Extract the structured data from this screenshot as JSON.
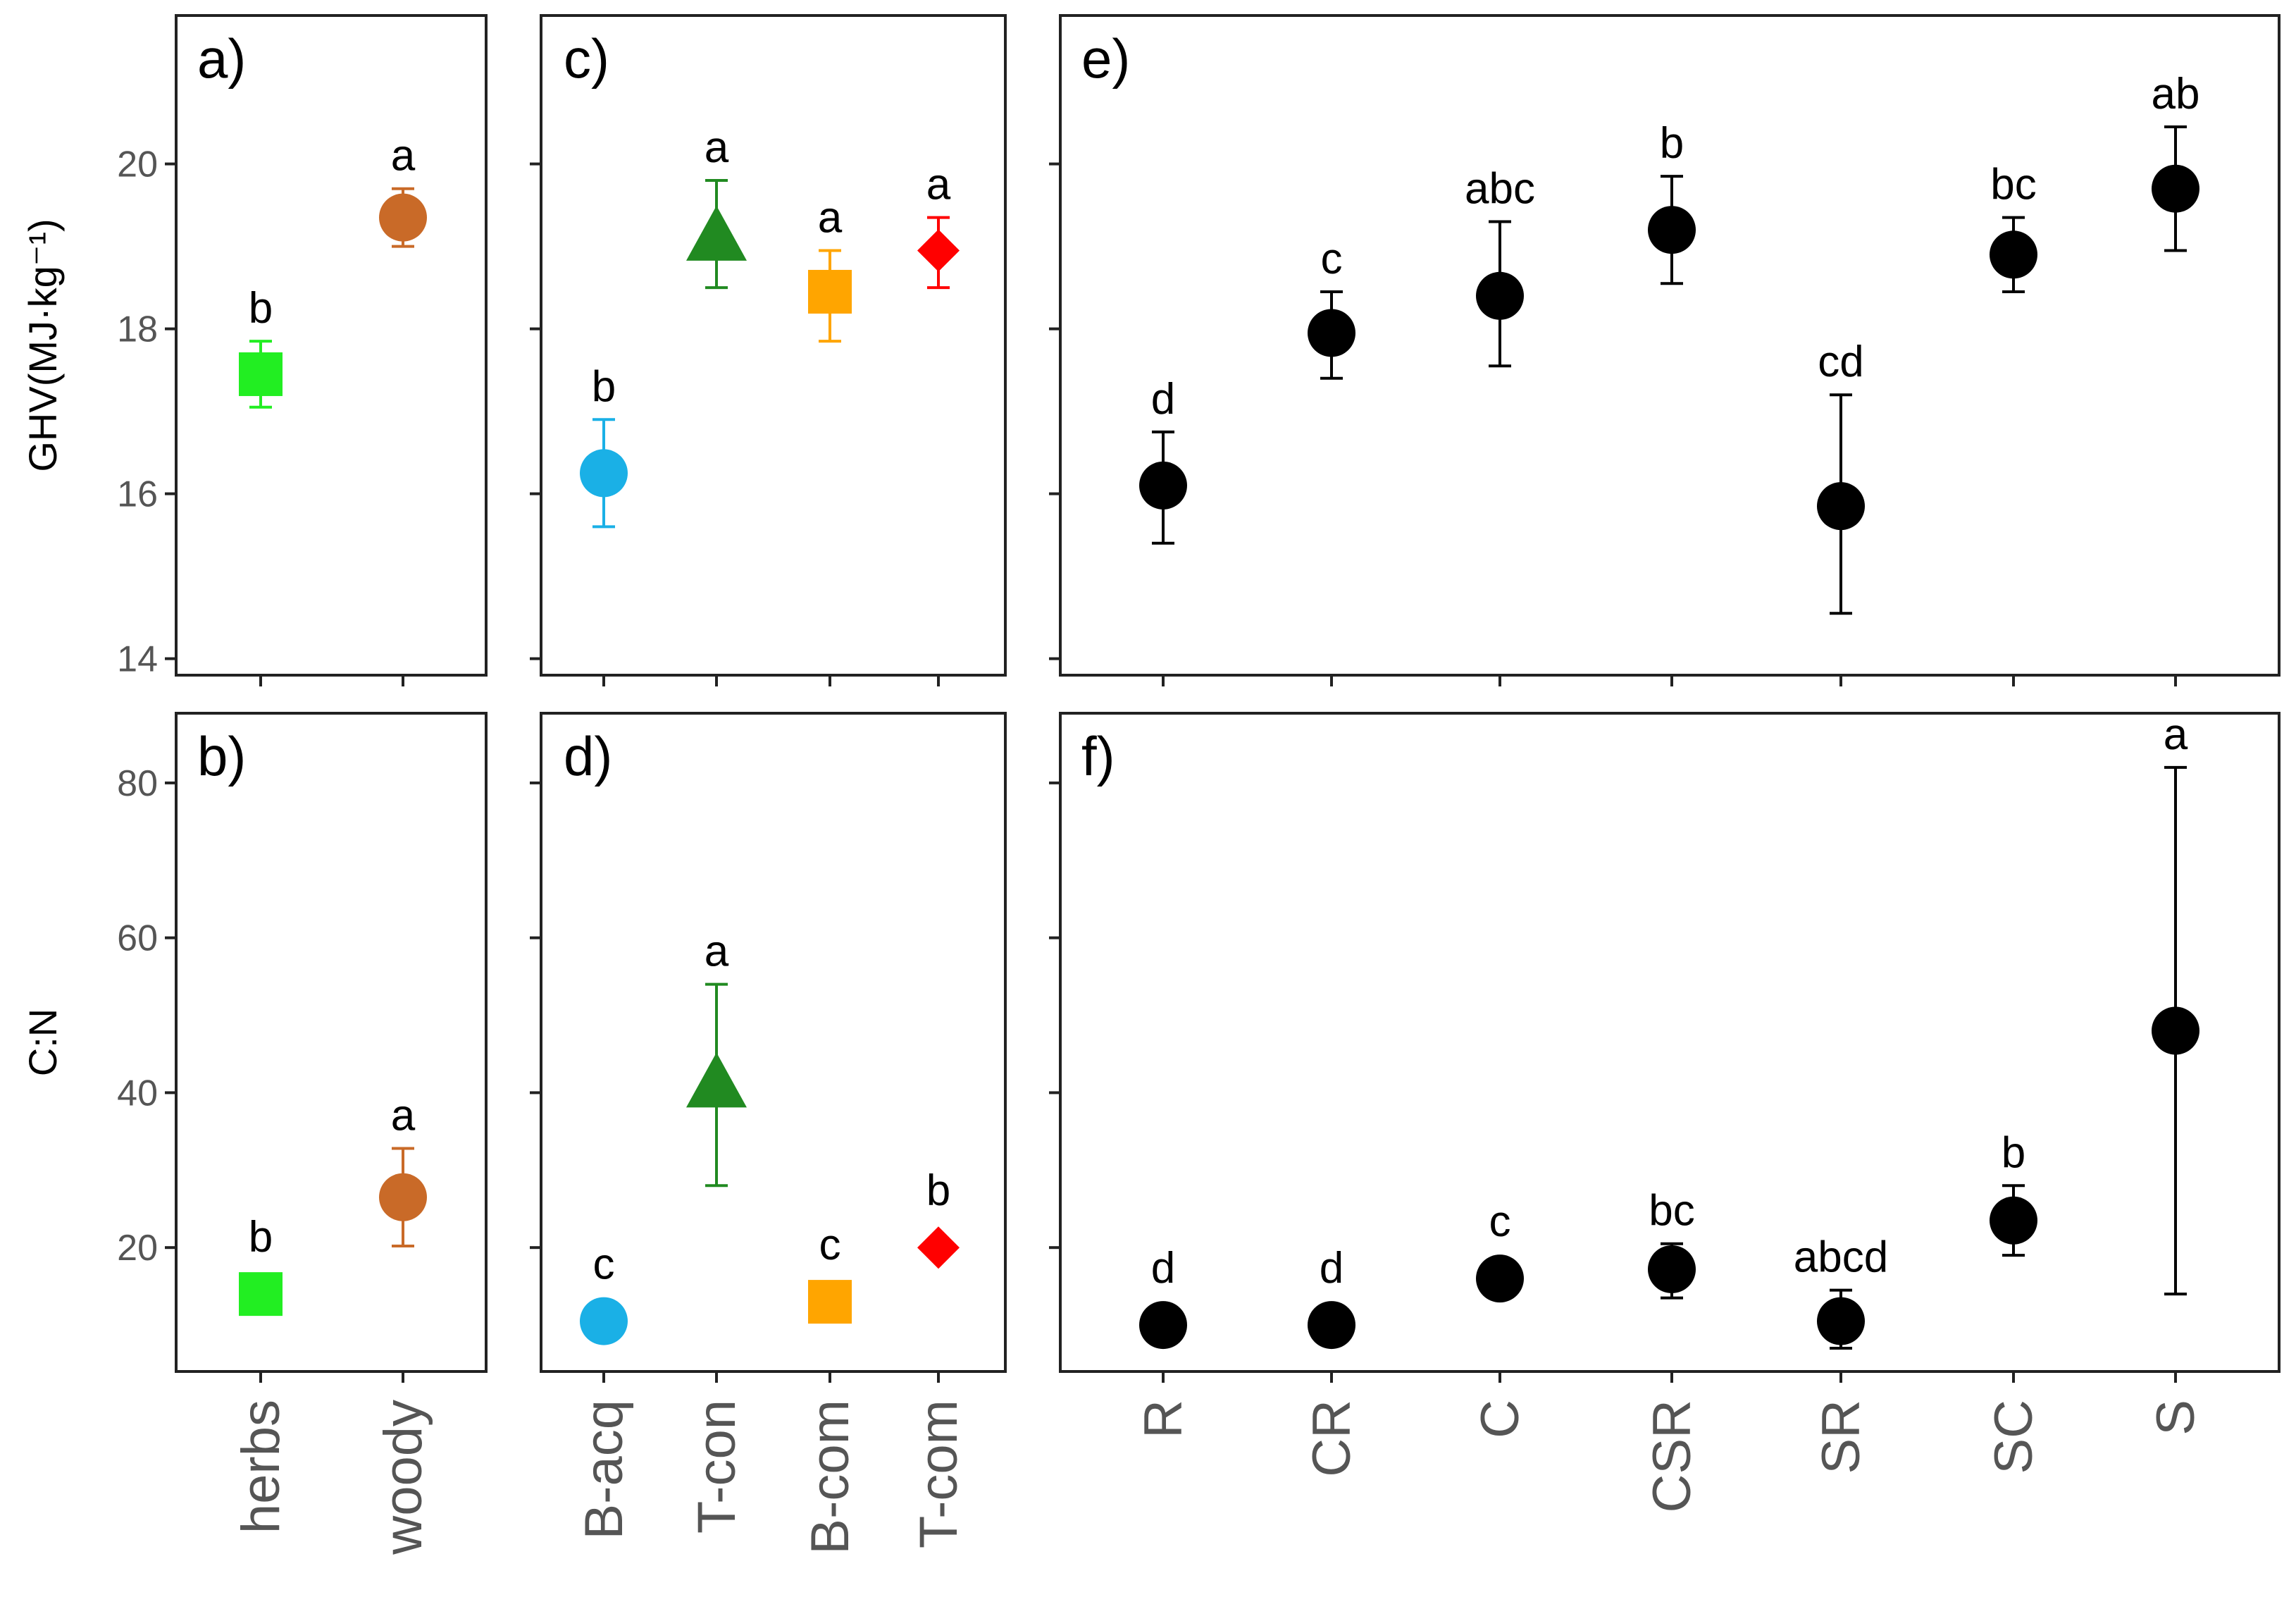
{
  "chart_data": [
    {
      "id": "a",
      "type": "scatter",
      "panel_label": "a)",
      "ylabel": "GHV(MJ·kg⁻¹)",
      "ylim": [
        13.8,
        21.8
      ],
      "yticks": [
        14,
        16,
        18,
        20
      ],
      "categories": [],
      "grid": false,
      "points": [
        {
          "x": "herbs",
          "y": 17.45,
          "lo": 17.05,
          "hi": 17.85,
          "letter": "b",
          "color": "#22ee22",
          "marker": "square"
        },
        {
          "x": "woody",
          "y": 19.35,
          "lo": 19.0,
          "hi": 19.7,
          "letter": "a",
          "color": "#c96a28",
          "marker": "circle"
        }
      ]
    },
    {
      "id": "b",
      "type": "scatter",
      "panel_label": "b)",
      "ylabel": "C:N",
      "ylim": [
        4,
        89
      ],
      "yticks": [
        20,
        40,
        60,
        80
      ],
      "categories": [
        "herbs",
        "woody"
      ],
      "grid": false,
      "points": [
        {
          "x": "herbs",
          "y": 14,
          "lo": null,
          "hi": null,
          "letter": "b",
          "color": "#22ee22",
          "marker": "square"
        },
        {
          "x": "woody",
          "y": 26.5,
          "lo": 20.2,
          "hi": 32.8,
          "letter": "a",
          "color": "#c96a28",
          "marker": "circle"
        }
      ]
    },
    {
      "id": "c",
      "type": "scatter",
      "panel_label": "c)",
      "ylabel": "",
      "ylim": [
        13.8,
        21.8
      ],
      "yticks": [
        14,
        16,
        18,
        20
      ],
      "categories": [],
      "grid": false,
      "points": [
        {
          "x": "B-acq",
          "y": 16.25,
          "lo": 15.6,
          "hi": 16.9,
          "letter": "b",
          "color": "#1ab0e6",
          "marker": "circle"
        },
        {
          "x": "T-con",
          "y": 19.1,
          "lo": 18.5,
          "hi": 19.8,
          "letter": "a",
          "color": "#218a21",
          "marker": "triangle"
        },
        {
          "x": "B-com",
          "y": 18.45,
          "lo": 17.85,
          "hi": 18.95,
          "letter": "a",
          "color": "#ffa500",
          "marker": "square"
        },
        {
          "x": "T-com",
          "y": 18.95,
          "lo": 18.5,
          "hi": 19.35,
          "letter": "a",
          "color": "#ff0000",
          "marker": "diamond"
        }
      ]
    },
    {
      "id": "d",
      "type": "scatter",
      "panel_label": "d)",
      "ylabel": "",
      "ylim": [
        4,
        89
      ],
      "yticks": [
        20,
        40,
        60,
        80
      ],
      "categories": [
        "B-acq",
        "T-con",
        "B-com",
        "T-com"
      ],
      "grid": false,
      "points": [
        {
          "x": "B-acq",
          "y": 10.5,
          "lo": null,
          "hi": null,
          "letter": "c",
          "color": "#1ab0e6",
          "marker": "circle"
        },
        {
          "x": "T-con",
          "y": 41,
          "lo": 28,
          "hi": 54,
          "letter": "a",
          "color": "#218a21",
          "marker": "triangle"
        },
        {
          "x": "B-com",
          "y": 13,
          "lo": null,
          "hi": null,
          "letter": "c",
          "color": "#ffa500",
          "marker": "square"
        },
        {
          "x": "T-com",
          "y": 20,
          "lo": null,
          "hi": null,
          "letter": "b",
          "color": "#ff0000",
          "marker": "diamond"
        }
      ]
    },
    {
      "id": "e",
      "type": "scatter",
      "panel_label": "e)",
      "ylabel": "",
      "ylim": [
        13.8,
        21.8
      ],
      "yticks": [
        14,
        16,
        18,
        20
      ],
      "categories": [],
      "grid": false,
      "points": [
        {
          "x": "R",
          "y": 16.1,
          "lo": 15.4,
          "hi": 16.75,
          "letter": "d",
          "color": "#000000",
          "marker": "circle"
        },
        {
          "x": "CR",
          "y": 17.95,
          "lo": 17.4,
          "hi": 18.45,
          "letter": "c",
          "color": "#000000",
          "marker": "circle"
        },
        {
          "x": "C",
          "y": 18.4,
          "lo": 17.55,
          "hi": 19.3,
          "letter": "abc",
          "color": "#000000",
          "marker": "circle"
        },
        {
          "x": "CSR",
          "y": 19.2,
          "lo": 18.55,
          "hi": 19.85,
          "letter": "b",
          "color": "#000000",
          "marker": "circle"
        },
        {
          "x": "SR",
          "y": 15.85,
          "lo": 14.55,
          "hi": 17.2,
          "letter": "cd",
          "color": "#000000",
          "marker": "circle"
        },
        {
          "x": "SC",
          "y": 18.9,
          "lo": 18.45,
          "hi": 19.35,
          "letter": "bc",
          "color": "#000000",
          "marker": "circle"
        },
        {
          "x": "S",
          "y": 19.7,
          "lo": 18.95,
          "hi": 20.45,
          "letter": "ab",
          "color": "#000000",
          "marker": "circle"
        }
      ]
    },
    {
      "id": "f",
      "type": "scatter",
      "panel_label": "f)",
      "ylabel": "",
      "ylim": [
        4,
        89
      ],
      "yticks": [
        20,
        40,
        60,
        80
      ],
      "categories": [
        "R",
        "CR",
        "C",
        "CSR",
        "SR",
        "SC",
        "S"
      ],
      "grid": false,
      "points": [
        {
          "x": "R",
          "y": 10,
          "lo": null,
          "hi": null,
          "letter": "d",
          "color": "#000000",
          "marker": "circle"
        },
        {
          "x": "CR",
          "y": 10,
          "lo": null,
          "hi": null,
          "letter": "d",
          "color": "#000000",
          "marker": "circle"
        },
        {
          "x": "C",
          "y": 16,
          "lo": 14.5,
          "hi": 18.5,
          "letter": "c",
          "color": "#000000",
          "marker": "circle"
        },
        {
          "x": "CSR",
          "y": 17.2,
          "lo": 13.5,
          "hi": 20.5,
          "letter": "bc",
          "color": "#000000",
          "marker": "circle"
        },
        {
          "x": "SR",
          "y": 10.5,
          "lo": 7,
          "hi": 14.5,
          "letter": "abcd",
          "color": "#000000",
          "marker": "circle"
        },
        {
          "x": "SC",
          "y": 23.5,
          "lo": 19,
          "hi": 28,
          "letter": "b",
          "color": "#000000",
          "marker": "circle"
        },
        {
          "x": "S",
          "y": 48,
          "lo": 14,
          "hi": 82,
          "letter": "a",
          "color": "#000000",
          "marker": "circle"
        }
      ]
    }
  ]
}
